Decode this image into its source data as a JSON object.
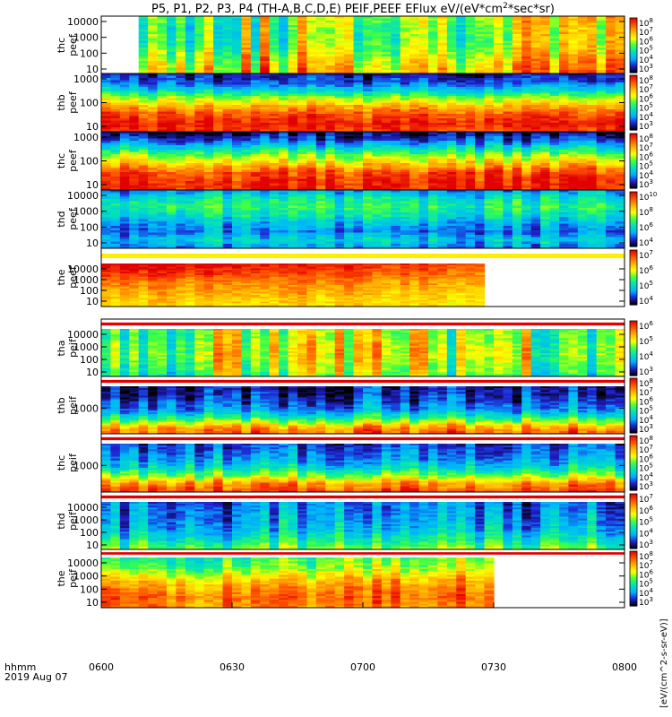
{
  "title": "P5, P1, P2, P3, P4 (TH-A,B,C,D,E) PEIF,PEEF EFlux eV/(eV*cm",
  "title_sup": "2",
  "title_tail": "*sec*sr)",
  "footer": {
    "time_label": "hhmm",
    "date_label": "2019 Aug 07"
  },
  "x_ticks": [
    "0600",
    "0630",
    "0700",
    "0730",
    "0800"
  ],
  "colorbar_unit_label": "[eV/(cm^2-s-sr-eV)]",
  "colormap": [
    "#000000",
    "#2020d0",
    "#00b0ff",
    "#00e0c0",
    "#40ff40",
    "#ffff00",
    "#ffb000",
    "#ff5000",
    "#e00000"
  ],
  "chart_data": {
    "type": "heatmap",
    "x_range": [
      "0600",
      "0800"
    ],
    "panels": [
      {
        "label": [
          "thc",
          "peef"
        ],
        "y_ticks": [
          "10000",
          "1000",
          "100",
          "10"
        ],
        "cbar_ticks": [
          "10^8",
          "10^7",
          "10^6",
          "10^5",
          "10^4",
          "10^3"
        ],
        "data_end": 1.0,
        "data_start": 0.07,
        "profile": [
          0.6,
          0.55,
          0.55,
          0.6,
          0.7,
          0.75
        ],
        "time_var": 0.25,
        "trend": 0.1
      },
      {
        "label": [
          "thb",
          "peef"
        ],
        "y_ticks": [
          "1000",
          "100",
          "10"
        ],
        "cbar_ticks": [
          "10^8",
          "10^7",
          "10^6",
          "10^5",
          "10^4",
          "10^3"
        ],
        "data_end": 1.0,
        "profile": [
          0.08,
          0.15,
          0.32,
          0.55,
          0.75,
          0.88,
          0.95,
          0.9
        ],
        "time_var": 0.08
      },
      {
        "label": [
          "thc",
          "peef"
        ],
        "y_ticks": [
          "1000",
          "100",
          "10"
        ],
        "cbar_ticks": [
          "10^8",
          "10^7",
          "10^6",
          "10^5",
          "10^4",
          "10^3"
        ],
        "data_end": 1.0,
        "profile": [
          0.02,
          0.15,
          0.35,
          0.55,
          0.72,
          0.88,
          0.93,
          0.95
        ],
        "time_var": 0.1
      },
      {
        "label": [
          "thd",
          "peef"
        ],
        "y_ticks": [
          "10000",
          "1000",
          "100",
          "10"
        ],
        "cbar_ticks": [
          "10^10",
          "10^8",
          "10^6",
          "10^4"
        ],
        "data_end": 1.0,
        "profile": [
          0.2,
          0.35,
          0.42,
          0.35,
          0.25,
          0.18,
          0.3,
          0.2
        ],
        "time_var": 0.12
      },
      {
        "label": [
          "the",
          "peef"
        ],
        "y_ticks": [
          "10000",
          "1000",
          "100",
          "10"
        ],
        "cbar_ticks": [
          "10^7",
          "10^6",
          "10^5",
          "10^4"
        ],
        "data_end": 0.74,
        "profile": [
          0.95,
          0.88,
          0.8,
          0.75,
          0.7,
          0.68
        ],
        "time_var": 0.05,
        "trend": -0.2
      },
      {
        "label": [
          "tha",
          "peif"
        ],
        "y_ticks": [
          "10000",
          "1000",
          "100",
          "10"
        ],
        "cbar_ticks": [
          "10^6",
          "10^5",
          "10^4",
          "10^3"
        ],
        "data_end": 1.0,
        "profile": [
          0.55,
          0.55,
          0.6,
          0.6,
          0.55,
          0.5
        ],
        "time_var": 0.25
      },
      {
        "label": [
          "thb",
          "peif"
        ],
        "y_ticks": [
          "1000"
        ],
        "cbar_ticks": [
          "10^8",
          "10^7",
          "10^6",
          "10^5",
          "10^4",
          "10^3"
        ],
        "data_end": 1.0,
        "profile": [
          0.1,
          0.12,
          0.18,
          0.25,
          0.45,
          0.75,
          0.9
        ],
        "time_var": 0.12
      },
      {
        "label": [
          "thc",
          "peif"
        ],
        "y_ticks": [
          "1000"
        ],
        "cbar_ticks": [
          "10^8",
          "10^7",
          "10^6",
          "10^5",
          "10^4",
          "10^3"
        ],
        "data_end": 1.0,
        "profile": [
          0.15,
          0.2,
          0.25,
          0.35,
          0.55,
          0.8,
          0.9
        ],
        "time_var": 0.12
      },
      {
        "label": [
          "thd",
          "peif"
        ],
        "y_ticks": [
          "10000",
          "1000",
          "100",
          "10"
        ],
        "cbar_ticks": [
          "10^7",
          "10^6",
          "10^5",
          "10^4",
          "10^3"
        ],
        "data_end": 1.0,
        "profile": [
          0.2,
          0.22,
          0.25,
          0.3,
          0.4,
          0.55
        ],
        "time_var": 0.15
      },
      {
        "label": [
          "the",
          "peif"
        ],
        "y_ticks": [
          "10000",
          "1000",
          "100",
          "10"
        ],
        "cbar_ticks": [
          "10^8",
          "10^7",
          "10^6",
          "10^5",
          "10^4",
          "10^3"
        ],
        "data_end": 0.75,
        "profile": [
          0.5,
          0.55,
          0.7,
          0.8,
          0.85,
          0.8
        ],
        "time_var": 0.1,
        "trend": 0.25
      }
    ]
  }
}
